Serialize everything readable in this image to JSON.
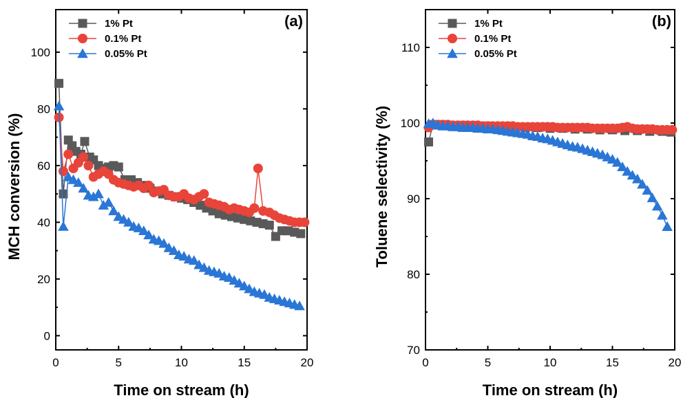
{
  "chart_data": [
    {
      "type": "line",
      "panel_label": "(a)",
      "xlabel": "Time on stream (h)",
      "ylabel": "MCH conversion (%)",
      "xlim": [
        0,
        20
      ],
      "ylim": [
        -5,
        115
      ],
      "xticks": [
        "0",
        "5",
        "10",
        "15",
        "20"
      ],
      "yticks": [
        "0",
        "20",
        "40",
        "60",
        "80",
        "100"
      ],
      "legend_position": "top-left",
      "series": [
        {
          "name": "1% Pt",
          "color": "#595959",
          "marker": "square",
          "x": [
            0.25,
            0.6,
            1.0,
            1.3,
            1.6,
            2.0,
            2.3,
            2.7,
            3.0,
            3.4,
            3.8,
            4.2,
            4.6,
            5.0,
            5.5,
            6.0,
            6.5,
            7.0,
            7.5,
            8.0,
            8.5,
            9.0,
            9.5,
            10.0,
            10.5,
            11.0,
            11.5,
            12.0,
            12.5,
            13.0,
            13.5,
            14.0,
            14.5,
            15.0,
            15.5,
            16.0,
            16.5,
            17.0,
            17.5,
            18.0,
            18.5,
            19.0,
            19.5
          ],
          "y": [
            89,
            50,
            69,
            67,
            65,
            64,
            68.5,
            63,
            62,
            60,
            59,
            59.5,
            60,
            59.5,
            55,
            55,
            54,
            53,
            52,
            51,
            50,
            49.5,
            49,
            48.5,
            48,
            47,
            46,
            45,
            44,
            43,
            42.5,
            42,
            41.5,
            41,
            40.5,
            40,
            39.5,
            39,
            35,
            37,
            37,
            36.5,
            36
          ]
        },
        {
          "name": "0.1% Pt",
          "color": "#e8443a",
          "marker": "circle",
          "x": [
            0.25,
            0.6,
            1.0,
            1.4,
            1.8,
            2.2,
            2.6,
            3.0,
            3.4,
            3.8,
            4.2,
            4.6,
            5.0,
            5.4,
            5.8,
            6.2,
            6.6,
            7.0,
            7.4,
            7.8,
            8.2,
            8.6,
            9.0,
            9.4,
            9.8,
            10.2,
            10.6,
            11.0,
            11.4,
            11.8,
            12.2,
            12.6,
            13.0,
            13.4,
            13.8,
            14.2,
            14.6,
            15.0,
            15.4,
            15.8,
            16.1,
            16.5,
            17.0,
            17.4,
            17.8,
            18.2,
            18.6,
            19.0,
            19.4,
            19.8
          ],
          "y": [
            77,
            58,
            64,
            59,
            61,
            63,
            60,
            56,
            57,
            58,
            57,
            55,
            54,
            53.5,
            53,
            52.5,
            53,
            52,
            53,
            50.5,
            51,
            51.5,
            49.5,
            49,
            49,
            50,
            48.5,
            48,
            49,
            50,
            47,
            46.5,
            46,
            45.5,
            44.5,
            45,
            44.5,
            44,
            43.5,
            45,
            59,
            44,
            43.5,
            42.5,
            41.5,
            41,
            40.5,
            40,
            40,
            40
          ]
        },
        {
          "name": "0.05% Pt",
          "color": "#2a76d6",
          "marker": "triangle",
          "x": [
            0.25,
            0.6,
            1.0,
            1.4,
            1.8,
            2.2,
            2.6,
            3.0,
            3.4,
            3.8,
            4.2,
            4.6,
            5.0,
            5.4,
            5.8,
            6.2,
            6.6,
            7.0,
            7.4,
            7.8,
            8.2,
            8.6,
            9.0,
            9.4,
            9.8,
            10.2,
            10.6,
            11.0,
            11.4,
            11.8,
            12.2,
            12.6,
            13.0,
            13.4,
            13.8,
            14.2,
            14.6,
            15.0,
            15.4,
            15.8,
            16.2,
            16.6,
            17.0,
            17.4,
            17.8,
            18.2,
            18.6,
            19.0,
            19.4
          ],
          "y": [
            81,
            38.5,
            56,
            55,
            54,
            52,
            49.5,
            49,
            50,
            46,
            47,
            44,
            42,
            41,
            40,
            38.5,
            38,
            37,
            35.5,
            34,
            33.5,
            32.5,
            31,
            30,
            28.5,
            28,
            27,
            26.5,
            25,
            24,
            23,
            22.5,
            22,
            21,
            20.5,
            19.5,
            18.5,
            17.5,
            16.5,
            15.5,
            15,
            14.5,
            13.5,
            13,
            12.5,
            12,
            11.5,
            11,
            10.5
          ]
        }
      ]
    },
    {
      "type": "line",
      "panel_label": "(b)",
      "xlabel": "Time on stream (h)",
      "ylabel": "Toluene selectivity (%)",
      "xlim": [
        0,
        20
      ],
      "ylim": [
        70,
        115
      ],
      "xticks": [
        "0",
        "5",
        "10",
        "15",
        "20"
      ],
      "yticks": [
        "70",
        "80",
        "90",
        "100",
        "110"
      ],
      "legend_position": "top-left",
      "series": [
        {
          "name": "1% Pt",
          "color": "#595959",
          "marker": "square",
          "x": [
            0.25,
            0.6,
            1.0,
            2.0,
            3.0,
            4.0,
            5.0,
            6.0,
            7.0,
            8.0,
            9.0,
            10.0,
            11.0,
            12.0,
            13.0,
            14.0,
            15.0,
            16.0,
            17.0,
            18.0,
            19.0,
            19.7
          ],
          "y": [
            97.5,
            99.8,
            99.8,
            99.7,
            99.7,
            99.6,
            99.6,
            99.5,
            99.5,
            99.4,
            99.4,
            99.3,
            99.3,
            99.2,
            99.2,
            99.1,
            99.1,
            99.0,
            99.0,
            98.9,
            98.9,
            98.8
          ]
        },
        {
          "name": "0.1% Pt",
          "color": "#e8443a",
          "marker": "circle",
          "x": [
            0.25,
            0.6,
            1.0,
            1.4,
            1.8,
            2.2,
            2.6,
            3.0,
            3.4,
            3.8,
            4.2,
            4.6,
            5.0,
            5.4,
            5.8,
            6.2,
            6.6,
            7.0,
            7.4,
            7.8,
            8.2,
            8.6,
            9.0,
            9.4,
            9.8,
            10.2,
            10.6,
            11.0,
            11.4,
            11.8,
            12.2,
            12.6,
            13.0,
            13.4,
            13.8,
            14.2,
            14.6,
            15.0,
            15.4,
            15.8,
            16.2,
            16.6,
            17.0,
            17.4,
            17.8,
            18.2,
            18.6,
            19.0,
            19.4,
            19.8
          ],
          "y": [
            99.4,
            99.8,
            99.8,
            99.8,
            99.8,
            99.7,
            99.7,
            99.7,
            99.7,
            99.7,
            99.7,
            99.6,
            99.6,
            99.6,
            99.6,
            99.6,
            99.6,
            99.6,
            99.5,
            99.5,
            99.5,
            99.5,
            99.5,
            99.5,
            99.5,
            99.5,
            99.4,
            99.4,
            99.4,
            99.4,
            99.4,
            99.4,
            99.4,
            99.3,
            99.3,
            99.3,
            99.3,
            99.3,
            99.3,
            99.4,
            99.5,
            99.3,
            99.2,
            99.2,
            99.2,
            99.2,
            99.1,
            99.1,
            99.1,
            99.1
          ]
        },
        {
          "name": "0.05% Pt",
          "color": "#2a76d6",
          "marker": "triangle",
          "x": [
            0.25,
            0.6,
            1.0,
            1.4,
            1.8,
            2.2,
            2.6,
            3.0,
            3.4,
            3.8,
            4.2,
            4.6,
            5.0,
            5.4,
            5.8,
            6.2,
            6.6,
            7.0,
            7.4,
            7.8,
            8.2,
            8.6,
            9.0,
            9.4,
            9.8,
            10.2,
            10.6,
            11.0,
            11.4,
            11.8,
            12.2,
            12.6,
            13.0,
            13.4,
            13.8,
            14.2,
            14.6,
            15.0,
            15.4,
            15.8,
            16.2,
            16.6,
            17.0,
            17.4,
            17.8,
            18.2,
            18.6,
            19.0,
            19.4
          ],
          "y": [
            99.9,
            100.0,
            99.7,
            99.6,
            99.6,
            99.5,
            99.5,
            99.4,
            99.4,
            99.4,
            99.3,
            99.3,
            99.2,
            99.2,
            99.1,
            99.0,
            98.9,
            98.8,
            98.7,
            98.6,
            98.5,
            98.3,
            98.2,
            98.0,
            97.9,
            97.7,
            97.5,
            97.3,
            97.1,
            96.9,
            96.8,
            96.6,
            96.4,
            96.2,
            96.0,
            95.8,
            95.5,
            95.2,
            94.8,
            94.2,
            93.6,
            93.1,
            92.6,
            91.9,
            91.1,
            90.1,
            89.0,
            87.8,
            86.3
          ]
        }
      ]
    }
  ]
}
